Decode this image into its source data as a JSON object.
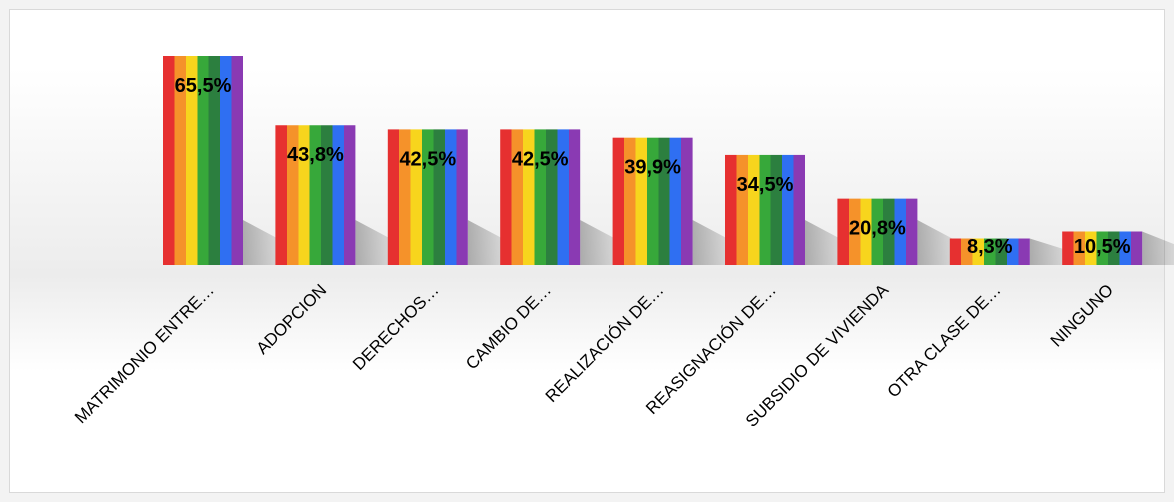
{
  "chart_data": {
    "type": "bar",
    "categories": [
      "MATRIMONIO ENTRE…",
      "ADOPCION",
      "DERECHOS…",
      "CAMBIO DE…",
      "REALIZACIÓN DE…",
      "REASIGNACIÓN DE…",
      "SUBSIDIO DE VIVIENDA",
      "OTRA CLASE DE…",
      "NINGUNO"
    ],
    "values": [
      65.5,
      43.8,
      42.5,
      42.5,
      39.9,
      34.5,
      20.8,
      8.3,
      10.5
    ],
    "value_labels": [
      "65,5%",
      "43,8%",
      "42,5%",
      "42,5%",
      "39,9%",
      "34,5%",
      "20,8%",
      "8,3%",
      "10,5%"
    ],
    "unit": "%",
    "title": "",
    "xlabel": "",
    "ylabel": "",
    "ylim": [
      0,
      70
    ],
    "grid": false,
    "legend": "none",
    "bar_stripe_colors": [
      "#e63030",
      "#f5922a",
      "#f7d51d",
      "#37a83a",
      "#2c7f3f",
      "#2f6ff2",
      "#8a3ab3"
    ]
  }
}
